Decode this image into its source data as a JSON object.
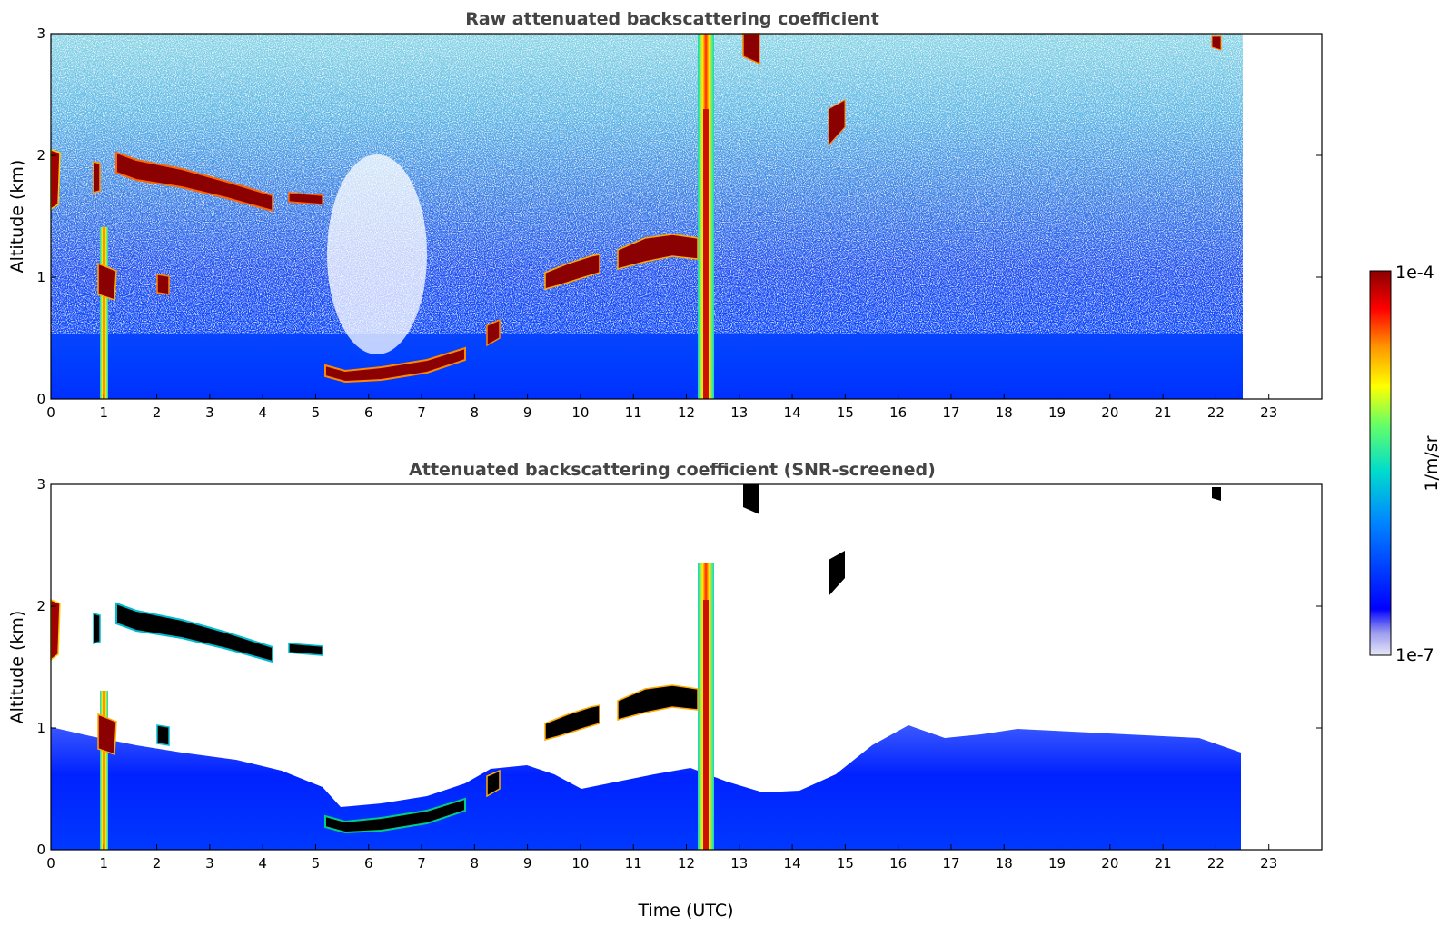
{
  "chart_data": [
    {
      "type": "heatmap",
      "id": "raw",
      "title": "Raw attenuated backscattering coefficient",
      "xlabel": "",
      "ylabel": "Altitude (km)",
      "xlim": [
        0,
        24
      ],
      "ylim": [
        0,
        3
      ],
      "x_ticks": [
        "0",
        "1",
        "2",
        "3",
        "4",
        "5",
        "6",
        "7",
        "8",
        "9",
        "10",
        "11",
        "12",
        "13",
        "14",
        "15",
        "16",
        "17",
        "18",
        "19",
        "20",
        "21",
        "22",
        "23"
      ],
      "y_ticks": [
        "0",
        "1",
        "2",
        "3"
      ],
      "data_extent_hours": [
        0,
        23
      ],
      "features": [
        {
          "name": "elevated aerosol layer",
          "time": [
            1.3,
            4.3
          ],
          "altitude": [
            1.55,
            2.0
          ]
        },
        {
          "name": "boundary layer top",
          "time": [
            5.4,
            8.0
          ],
          "altitude": [
            0.15,
            0.35
          ]
        },
        {
          "name": "rain/virga column",
          "time": [
            12.5,
            12.8
          ],
          "altitude": [
            0,
            3
          ]
        }
      ]
    },
    {
      "type": "heatmap",
      "id": "snr",
      "title": "Attenuated backscattering coefficient (SNR-screened)",
      "xlabel": "Time (UTC)",
      "ylabel": "Altitude (km)",
      "xlim": [
        0,
        24
      ],
      "ylim": [
        0,
        3
      ],
      "x_ticks": [
        "0",
        "1",
        "2",
        "3",
        "4",
        "5",
        "6",
        "7",
        "8",
        "9",
        "10",
        "11",
        "12",
        "13",
        "14",
        "15",
        "16",
        "17",
        "18",
        "19",
        "20",
        "21",
        "22",
        "23"
      ],
      "y_ticks": [
        "0",
        "1",
        "2",
        "3"
      ],
      "data_extent_hours": [
        0,
        23
      ]
    }
  ],
  "colorbar": {
    "label": "1/m/sr",
    "max_label": "1e-4",
    "min_label": "1e-7",
    "range": [
      1e-07,
      0.0001
    ],
    "scale": "log",
    "colors": [
      "#e8e8f8",
      "#9999ee",
      "#0000ff",
      "#0088ff",
      "#00ddcc",
      "#66ff66",
      "#ffff00",
      "#ff9900",
      "#ff0000",
      "#8b0000"
    ]
  }
}
